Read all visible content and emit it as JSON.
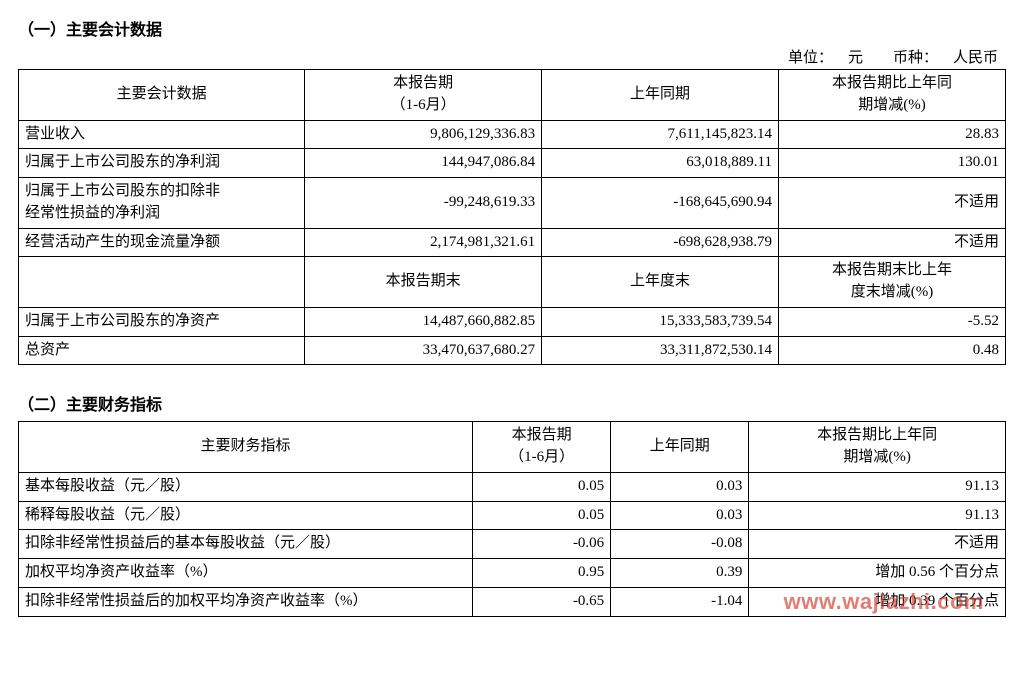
{
  "section1": {
    "title": "（一）主要会计数据",
    "unit_line": "单位： 元  币种： 人民币",
    "header": {
      "c1": "主要会计数据",
      "c2_l1": "本报告期",
      "c2_l2": "（1-6月）",
      "c3": "上年同期",
      "c4_l1": "本报告期比上年同",
      "c4_l2": "期增减(%)"
    },
    "rows": [
      {
        "label": "营业收入",
        "v1": "9,806,129,336.83",
        "v2": "7,611,145,823.14",
        "v3": "28.83"
      },
      {
        "label": "归属于上市公司股东的净利润",
        "v1": "144,947,086.84",
        "v2": "63,018,889.11",
        "v3": "130.01"
      },
      {
        "label_l1": "归属于上市公司股东的扣除非",
        "label_l2": "经常性损益的净利润",
        "v1": "-99,248,619.33",
        "v2": "-168,645,690.94",
        "v3": "不适用"
      },
      {
        "label": "经营活动产生的现金流量净额",
        "v1": "2,174,981,321.61",
        "v2": "-698,628,938.79",
        "v3": "不适用"
      }
    ],
    "header2": {
      "c2": "本报告期末",
      "c3": "上年度末",
      "c4_l1": "本报告期末比上年",
      "c4_l2": "度末增减(%)"
    },
    "rows2": [
      {
        "label": "归属于上市公司股东的净资产",
        "v1": "14,487,660,882.85",
        "v2": "15,333,583,739.54",
        "v3": "-5.52"
      },
      {
        "label": "总资产",
        "v1": "33,470,637,680.27",
        "v2": "33,311,872,530.14",
        "v3": "0.48"
      }
    ]
  },
  "section2": {
    "title": "（二）主要财务指标",
    "header": {
      "c1": "主要财务指标",
      "c2_l1": "本报告期",
      "c2_l2": "（1-6月）",
      "c3": "上年同期",
      "c4_l1": "本报告期比上年同",
      "c4_l2": "期增减(%)"
    },
    "rows": [
      {
        "label": "基本每股收益（元／股）",
        "v1": "0.05",
        "v2": "0.03",
        "v3": "91.13"
      },
      {
        "label": "稀释每股收益（元／股）",
        "v1": "0.05",
        "v2": "0.03",
        "v3": "91.13"
      },
      {
        "label": "扣除非经常性损益后的基本每股收益（元／股）",
        "v1": "-0.06",
        "v2": "-0.08",
        "v3": "不适用"
      },
      {
        "label": "加权平均净资产收益率（%）",
        "v1": "0.95",
        "v2": "0.39",
        "v3": "增加 0.56 个百分点"
      },
      {
        "label": "扣除非经常性损益后的加权平均净资产收益率（%）",
        "v1": "-0.65",
        "v2": "-1.04",
        "v3": "增加 0.39 个百分点"
      }
    ]
  },
  "watermark": "www.wajiazhi.com"
}
